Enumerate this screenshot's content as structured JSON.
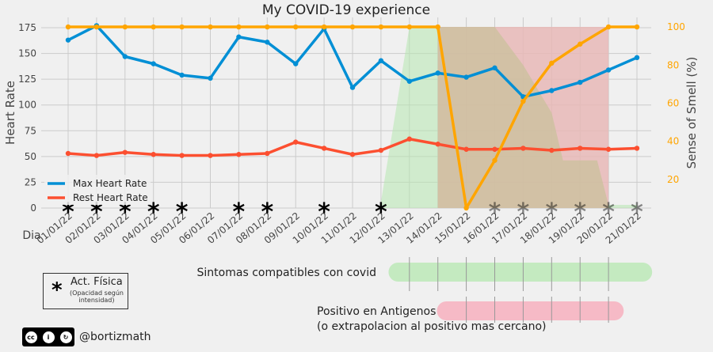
{
  "chart_data": {
    "type": "line",
    "title": "My COVID-19 experience",
    "xlabel": "Dia",
    "ylabel": "Heart Rate",
    "y2label": "Sense of Smell (%)",
    "categories": [
      "01/01/22",
      "02/01/22",
      "03/01/22",
      "04/01/22",
      "05/01/22",
      "06/01/22",
      "07/01/22",
      "08/01/22",
      "09/01/22",
      "10/01/22",
      "11/01/22",
      "12/01/22",
      "13/01/22",
      "14/01/22",
      "15/01/22",
      "16/01/22",
      "17/01/22",
      "18/01/22",
      "19/01/22",
      "20/01/22",
      "21/01/22"
    ],
    "ylim": [
      0,
      185
    ],
    "y2lim": [
      5,
      105
    ],
    "yticks": [
      0,
      25,
      50,
      75,
      100,
      125,
      150,
      175
    ],
    "y2ticks": [
      20,
      40,
      60,
      80,
      100
    ],
    "series": [
      {
        "name": "Max Heart Rate",
        "axis": "left",
        "color": "#008fd5",
        "values": [
          163,
          177,
          147,
          140,
          129,
          126,
          166,
          161,
          140,
          174,
          117,
          143,
          123,
          131,
          127,
          136,
          108,
          114,
          122,
          134,
          146
        ]
      },
      {
        "name": "Rest Heart Rate",
        "axis": "left",
        "color": "#fc4f30",
        "values": [
          53,
          51,
          54,
          52,
          51,
          51,
          52,
          53,
          64,
          58,
          52,
          56,
          67,
          62,
          57,
          57,
          58,
          56,
          58,
          57,
          58
        ]
      },
      {
        "name": "Sense of Smell",
        "axis": "right",
        "color": "#ffa500",
        "values": [
          100,
          100,
          100,
          100,
          100,
          100,
          100,
          100,
          100,
          100,
          100,
          100,
          100,
          100,
          5,
          30,
          61,
          81,
          91,
          100,
          100
        ]
      }
    ],
    "legend": [
      "Max Heart Rate",
      "Rest Heart Rate"
    ],
    "legend_position": "lower-left",
    "bands": [
      {
        "name": "Sintomas compatibles con covid",
        "color": "#b6e8b0",
        "profile": [
          0,
          0,
          0,
          0,
          0,
          0,
          0,
          0,
          0,
          0,
          0,
          0,
          100,
          100,
          100,
          100,
          100,
          100,
          100,
          100,
          100
        ],
        "lane": "Sintomas compatibles con covid"
      },
      {
        "name": "Positivo en Antigenos",
        "color": "#f9a8b8",
        "profile": [
          0,
          0,
          0,
          0,
          0,
          0,
          0,
          0,
          0,
          0,
          0,
          0,
          0,
          100,
          100,
          100,
          100,
          100,
          100,
          100,
          0
        ],
        "lane": "Positivo en Antigenos"
      }
    ],
    "activity_days": [
      {
        "day": "01/01/22",
        "opacity": 1
      },
      {
        "day": "02/01/22",
        "opacity": 1
      },
      {
        "day": "03/01/22",
        "opacity": 1
      },
      {
        "day": "04/01/22",
        "opacity": 1
      },
      {
        "day": "05/01/22",
        "opacity": 1
      },
      {
        "day": "07/01/22",
        "opacity": 1
      },
      {
        "day": "08/01/22",
        "opacity": 1
      },
      {
        "day": "10/01/22",
        "opacity": 1
      },
      {
        "day": "12/01/22",
        "opacity": 1
      },
      {
        "day": "16/01/22",
        "opacity": 0.45
      },
      {
        "day": "17/01/22",
        "opacity": 0.45
      },
      {
        "day": "18/01/22",
        "opacity": 0.45
      },
      {
        "day": "19/01/22",
        "opacity": 0.45
      },
      {
        "day": "20/01/22",
        "opacity": 0.45
      },
      {
        "day": "21/01/22",
        "opacity": 0.45
      }
    ],
    "lanes": {
      "symptoms_label": "Sintomas compatibles con covid",
      "positive_label_1": "Positivo en Antigenos",
      "positive_label_2": "(o extrapolacion al positivo mas cercano)"
    },
    "activity_legend": {
      "symbol": "*",
      "title": "Act. Física",
      "note": "(Opacidad según intensidad)"
    }
  },
  "footer": {
    "license": "CC BY SA",
    "handle": "@bortizmath"
  }
}
